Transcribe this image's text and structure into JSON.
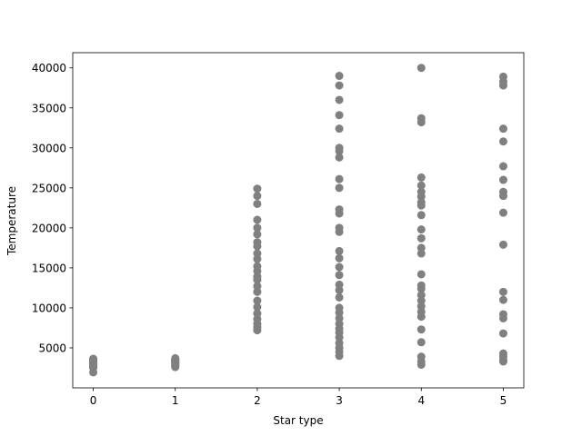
{
  "chart_data": {
    "type": "scatter",
    "x_label": "Star type",
    "y_label": "Temperature",
    "color": "#808080",
    "xlim": [
      -0.25,
      5.25
    ],
    "ylim": [
      0,
      41900
    ],
    "xticks": [
      0,
      1,
      2,
      3,
      4,
      5
    ],
    "yticks": [
      5000,
      10000,
      15000,
      20000,
      25000,
      30000,
      35000,
      40000
    ],
    "x": [
      0,
      0,
      0,
      0,
      0,
      0,
      0,
      0,
      0,
      0,
      0,
      0,
      0,
      0,
      0,
      0,
      0,
      0,
      0,
      0,
      1,
      1,
      1,
      1,
      1,
      1,
      1,
      1,
      1,
      1,
      1,
      1,
      1,
      1,
      1,
      2,
      2,
      2,
      2,
      2,
      2,
      2,
      2,
      2,
      2,
      2,
      2,
      2,
      2,
      2,
      2,
      2,
      2,
      2,
      2,
      2,
      2,
      2,
      3,
      3,
      3,
      3,
      3,
      3,
      3,
      3,
      3,
      3,
      3,
      3,
      3,
      3,
      3,
      3,
      3,
      3,
      3,
      3,
      3,
      3,
      3,
      3,
      3,
      3,
      3,
      3,
      3,
      3,
      3,
      3,
      4,
      4,
      4,
      4,
      4,
      4,
      4,
      4,
      4,
      4,
      4,
      4,
      4,
      4,
      4,
      4,
      4,
      4,
      4,
      4,
      4,
      4,
      4,
      4,
      4,
      4,
      4,
      5,
      5,
      5,
      5,
      5,
      5,
      5,
      5,
      5,
      5,
      5,
      5,
      5,
      5,
      5,
      5,
      5,
      5,
      5,
      5
    ],
    "values": [
      3068,
      3042,
      2600,
      2800,
      1939,
      2840,
      2637,
      2600,
      3600,
      3129,
      3134,
      3628,
      2650,
      3340,
      2700,
      3300,
      2500,
      3000,
      3200,
      3400,
      3000,
      3200,
      3400,
      2800,
      3600,
      3500,
      3150,
      2900,
      3700,
      3300,
      2600,
      3100,
      3450,
      3250,
      2750,
      24900,
      24000,
      23000,
      21000,
      20000,
      19200,
      18200,
      17700,
      16800,
      16100,
      15200,
      14600,
      13900,
      13500,
      12700,
      12000,
      10900,
      10100,
      9300,
      8600,
      8000,
      7200,
      7600,
      39000,
      37800,
      36000,
      34100,
      32400,
      30000,
      29600,
      28800,
      26100,
      25000,
      22300,
      21800,
      20000,
      19500,
      17100,
      16200,
      15100,
      14100,
      12900,
      12200,
      11300,
      10000,
      9400,
      8700,
      8000,
      7400,
      6900,
      6300,
      5600,
      5000,
      4500,
      4000,
      40000,
      33700,
      33200,
      26300,
      25300,
      24500,
      23900,
      23200,
      22800,
      21600,
      19800,
      18700,
      17500,
      16800,
      14200,
      12800,
      12400,
      11600,
      10900,
      10200,
      9500,
      8900,
      7300,
      5700,
      3900,
      3300,
      2900,
      38900,
      38300,
      37800,
      32400,
      30800,
      27700,
      26000,
      24500,
      24000,
      21900,
      17900,
      12000,
      11000,
      9200,
      8700,
      6800,
      4300,
      3900,
      3500,
      3300
    ]
  }
}
